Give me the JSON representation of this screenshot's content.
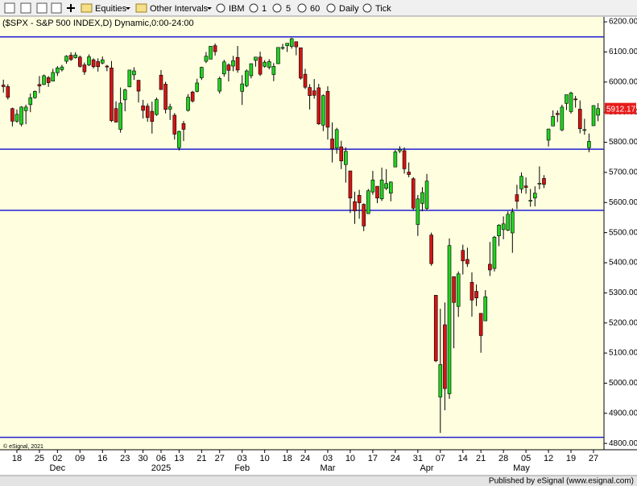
{
  "toolbar": {
    "items": [
      "Equities",
      "Other Intervals",
      "IBM",
      "1",
      "5",
      "60",
      "Daily",
      "Tick"
    ]
  },
  "chart_data": {
    "type": "candlestick",
    "title": "($SPX - S&P 500 INDEX,D) Dynamic,0:00-24:00",
    "watermark": "© eSignal, 2021",
    "categories": [
      null,
      null,
      null,
      "18",
      null,
      null,
      null,
      null,
      "25",
      null,
      null,
      null,
      "02",
      null,
      null,
      null,
      null,
      "09",
      null,
      null,
      null,
      null,
      "16",
      null,
      null,
      null,
      null,
      "23",
      null,
      null,
      null,
      "30",
      null,
      null,
      null,
      "06",
      null,
      null,
      null,
      "13",
      null,
      null,
      null,
      null,
      "21",
      null,
      null,
      null,
      "27",
      null,
      null,
      null,
      null,
      "03",
      null,
      null,
      null,
      null,
      "10",
      null,
      null,
      null,
      null,
      "18",
      null,
      null,
      null,
      "24",
      null,
      null,
      null,
      null,
      "03",
      null,
      null,
      null,
      null,
      "10",
      null,
      null,
      null,
      null,
      "17",
      null,
      null,
      null,
      null,
      "24",
      null,
      null,
      null,
      null,
      "31",
      null,
      null,
      null,
      null,
      "07",
      null,
      null,
      null,
      null,
      "14",
      null,
      null,
      null,
      "21",
      null,
      null,
      null,
      null,
      "28",
      null,
      null,
      null,
      null,
      "05",
      null,
      null,
      null,
      null,
      "12",
      null,
      null,
      null,
      null,
      "19",
      null,
      null,
      null,
      null,
      "27",
      null
    ],
    "month_labels": [
      null,
      null,
      null,
      null,
      null,
      null,
      null,
      null,
      null,
      null,
      null,
      null,
      "Dec",
      null,
      null,
      null,
      null,
      null,
      null,
      null,
      null,
      null,
      null,
      null,
      null,
      null,
      null,
      null,
      null,
      null,
      null,
      null,
      null,
      null,
      null,
      "2025",
      null,
      null,
      null,
      null,
      null,
      null,
      null,
      null,
      null,
      null,
      null,
      null,
      null,
      null,
      null,
      null,
      null,
      "Feb",
      null,
      null,
      null,
      null,
      null,
      null,
      null,
      null,
      null,
      null,
      null,
      null,
      null,
      null,
      null,
      null,
      null,
      null,
      "Mar",
      null,
      null,
      null,
      null,
      null,
      null,
      null,
      null,
      null,
      null,
      null,
      null,
      null,
      null,
      null,
      null,
      null,
      null,
      null,
      null,
      null,
      "Apr",
      null,
      null,
      null,
      null,
      null,
      null,
      null,
      null,
      null,
      null,
      null,
      null,
      null,
      null,
      null,
      null,
      null,
      null,
      null,
      null,
      "May",
      null,
      null,
      null,
      null,
      null,
      null,
      null,
      null,
      null,
      null,
      null,
      null,
      null,
      null,
      null,
      null,
      null
    ],
    "ohlc": [
      [
        5990,
        6008,
        5965,
        5985
      ],
      [
        5985,
        5993,
        5942,
        5949
      ],
      [
        5912,
        5915,
        5853,
        5870
      ],
      [
        5870,
        5909,
        5865,
        5893
      ],
      [
        5860,
        5920,
        5853,
        5917
      ],
      [
        5905,
        5925,
        5860,
        5917
      ],
      [
        5925,
        5962,
        5900,
        5948
      ],
      [
        5948,
        5972,
        5945,
        5969
      ],
      [
        5992,
        6020,
        5963,
        5987
      ],
      [
        5992,
        6025,
        5990,
        6021
      ],
      [
        6015,
        6020,
        5984,
        5998
      ],
      [
        6003,
        6044,
        6003,
        6032
      ],
      [
        6031,
        6053,
        6020,
        6047
      ],
      [
        6041,
        6057,
        6035,
        6050
      ],
      [
        6069,
        6089,
        6061,
        6086
      ],
      [
        6089,
        6099,
        6070,
        6075
      ],
      [
        6081,
        6099,
        6078,
        6090
      ],
      [
        6083,
        6088,
        6048,
        6052
      ],
      [
        6057,
        6065,
        6024,
        6034
      ],
      [
        6057,
        6092,
        6053,
        6084
      ],
      [
        6074,
        6079,
        6045,
        6051
      ],
      [
        6068,
        6079,
        6035,
        6051
      ],
      [
        6063,
        6085,
        6059,
        6074
      ],
      [
        6053,
        6057,
        6036,
        6050
      ],
      [
        6047,
        6070,
        5867,
        5872
      ],
      [
        5912,
        5936,
        5866,
        5867
      ],
      [
        5843,
        5982,
        5832,
        5930
      ],
      [
        5941,
        5978,
        5903,
        5974
      ],
      [
        5984,
        6040,
        5983,
        6040
      ],
      [
        6024,
        6049,
        6007,
        6037
      ],
      [
        6006,
        6007,
        5932,
        5970
      ],
      [
        5921,
        5941,
        5879,
        5906
      ],
      [
        5920,
        5929,
        5868,
        5882
      ],
      [
        5903,
        5935,
        5829,
        5869
      ],
      [
        5892,
        5949,
        5888,
        5942
      ],
      [
        6023,
        6040,
        5975,
        5975
      ],
      [
        5993,
        6001,
        5896,
        5909
      ],
      [
        5910,
        5928,
        5874,
        5918
      ],
      [
        5890,
        5897,
        5809,
        5827
      ],
      [
        5782,
        5839,
        5773,
        5836
      ],
      [
        5862,
        5871,
        5804,
        5843
      ],
      [
        5906,
        5960,
        5902,
        5950
      ],
      [
        5967,
        5971,
        5932,
        5937
      ],
      [
        5969,
        6011,
        5966,
        5997
      ],
      [
        6014,
        6051,
        6007,
        6049
      ],
      [
        6069,
        6100,
        6063,
        6086
      ],
      [
        6076,
        6119,
        6076,
        6119
      ],
      [
        6121,
        6128,
        6088,
        6101
      ],
      [
        5970,
        6018,
        5962,
        6012
      ],
      [
        6027,
        6074,
        6018,
        6067
      ],
      [
        6057,
        6062,
        6002,
        6039
      ],
      [
        6053,
        6087,
        6036,
        6071
      ],
      [
        6082,
        6120,
        6031,
        6040
      ],
      [
        5969,
        6023,
        5924,
        5994
      ],
      [
        5988,
        6042,
        5983,
        6037
      ],
      [
        6021,
        6062,
        6012,
        6061
      ],
      [
        6072,
        6084,
        6051,
        6083
      ],
      [
        6083,
        6101,
        6020,
        6026
      ],
      [
        6052,
        6073,
        6048,
        6066
      ],
      [
        6049,
        6076,
        6042,
        6068
      ],
      [
        6025,
        6063,
        6003,
        6052
      ],
      [
        6061,
        6116,
        6060,
        6115
      ],
      [
        6112,
        6127,
        6107,
        6115
      ],
      [
        6121,
        6129,
        6100,
        6129
      ],
      [
        6118,
        6147,
        6111,
        6144
      ],
      [
        6134,
        6135,
        6089,
        6117
      ],
      [
        6114,
        6114,
        6008,
        6013
      ],
      [
        6026,
        6044,
        5977,
        5983
      ],
      [
        5982,
        5993,
        5909,
        5955
      ],
      [
        5971,
        6010,
        5945,
        5956
      ],
      [
        5981,
        5994,
        5858,
        5861
      ],
      [
        5857,
        5959,
        5837,
        5955
      ],
      [
        5969,
        5986,
        5809,
        5850
      ],
      [
        5811,
        5866,
        5733,
        5778
      ],
      [
        5781,
        5848,
        5762,
        5842
      ],
      [
        5785,
        5805,
        5711,
        5738
      ],
      [
        5726,
        5783,
        5666,
        5770
      ],
      [
        5705,
        5705,
        5565,
        5615
      ],
      [
        5603,
        5636,
        5529,
        5572
      ],
      [
        5624,
        5642,
        5546,
        5599
      ],
      [
        5594,
        5597,
        5505,
        5522
      ],
      [
        5563,
        5645,
        5563,
        5639
      ],
      [
        5635,
        5705,
        5626,
        5675
      ],
      [
        5654,
        5654,
        5598,
        5615
      ],
      [
        5612,
        5716,
        5605,
        5675
      ],
      [
        5647,
        5711,
        5641,
        5663
      ],
      [
        5631,
        5670,
        5604,
        5668
      ],
      [
        5718,
        5775,
        5718,
        5768
      ],
      [
        5771,
        5787,
        5764,
        5776
      ],
      [
        5772,
        5783,
        5696,
        5712
      ],
      [
        5701,
        5733,
        5684,
        5693
      ],
      [
        5679,
        5684,
        5573,
        5581
      ],
      [
        5527,
        5625,
        5489,
        5612
      ],
      [
        5597,
        5651,
        5571,
        5633
      ],
      [
        5580,
        5695,
        5574,
        5671
      ],
      [
        5492,
        5500,
        5390,
        5397
      ],
      [
        5292,
        5293,
        5070,
        5074
      ],
      [
        4954,
        5247,
        4835,
        5062
      ],
      [
        5194,
        5268,
        4910,
        4982
      ],
      [
        4965,
        5481,
        4948,
        5457
      ],
      [
        5354,
        5354,
        5116,
        5268
      ],
      [
        5255,
        5371,
        5220,
        5363
      ],
      [
        5441,
        5460,
        5361,
        5406
      ],
      [
        5411,
        5450,
        5386,
        5397
      ],
      [
        5335,
        5368,
        5221,
        5276
      ],
      [
        5305,
        5328,
        5256,
        5283
      ],
      [
        5232,
        5232,
        5101,
        5158
      ],
      [
        5207,
        5309,
        5207,
        5287
      ],
      [
        5395,
        5469,
        5356,
        5376
      ],
      [
        5381,
        5489,
        5371,
        5485
      ],
      [
        5489,
        5528,
        5455,
        5525
      ],
      [
        5510,
        5554,
        5478,
        5529
      ],
      [
        5508,
        5571,
        5505,
        5561
      ],
      [
        5499,
        5581,
        5433,
        5569
      ],
      [
        5626,
        5659,
        5578,
        5604
      ],
      [
        5645,
        5700,
        5631,
        5687
      ],
      [
        5655,
        5683,
        5629,
        5650
      ],
      [
        5606,
        5645,
        5586,
        5607
      ],
      [
        5615,
        5654,
        5587,
        5631
      ],
      [
        5663,
        5720,
        5644,
        5664
      ],
      [
        5680,
        5691,
        5648,
        5660
      ],
      [
        5807,
        5845,
        5786,
        5844
      ],
      [
        5854,
        5906,
        5854,
        5886
      ],
      [
        5896,
        5906,
        5867,
        5892
      ],
      [
        5841,
        5925,
        5837,
        5917
      ],
      [
        5929,
        5958,
        5907,
        5958
      ],
      [
        5902,
        5968,
        5895,
        5964
      ],
      [
        5944,
        5954,
        5915,
        5941
      ],
      [
        5910,
        5939,
        5830,
        5845
      ],
      [
        5841,
        5878,
        5825,
        5842
      ],
      [
        5782,
        5829,
        5767,
        5803
      ],
      [
        5855,
        5923,
        5855,
        5922
      ],
      [
        5890,
        5930,
        5870,
        5912.17
      ]
    ],
    "ylim": [
      4779,
      6219
    ],
    "yticks": [
      {
        "value": 4800,
        "label": "4800.00"
      },
      {
        "value": 4900,
        "label": "4900.00"
      },
      {
        "value": 5000,
        "label": "5000.00"
      },
      {
        "value": 5100,
        "label": "5100.00"
      },
      {
        "value": 5200,
        "label": "5200.00"
      },
      {
        "value": 5300,
        "label": "5300.00"
      },
      {
        "value": 5400,
        "label": "5400.00"
      },
      {
        "value": 5500,
        "label": "5500.00"
      },
      {
        "value": 5600,
        "label": "5600.00"
      },
      {
        "value": 5700,
        "label": "5700.00"
      },
      {
        "value": 5800,
        "label": "5800.00"
      },
      {
        "value": 5900,
        "label": "5900.00"
      },
      {
        "value": 6000,
        "label": "6000.00"
      },
      {
        "value": 6100,
        "label": "6100.00"
      },
      {
        "value": 6200,
        "label": "6200.00"
      }
    ],
    "hlines": [
      6150,
      5777,
      5574,
      4820
    ],
    "last_price": {
      "value": 5912.17,
      "label": "5912.17"
    },
    "colors": {
      "up": "#22d022",
      "down": "#d41414",
      "hline": "#2020d0",
      "background": "#ffffe0"
    }
  },
  "footer": "Published by eSignal (www.esignal.com)"
}
